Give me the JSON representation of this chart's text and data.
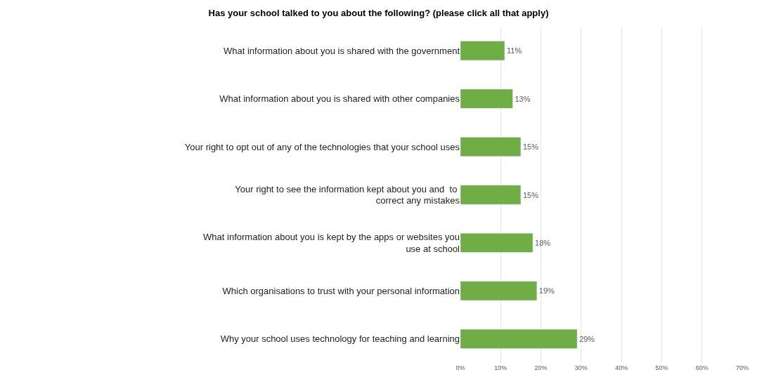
{
  "chart_data": {
    "type": "bar",
    "orientation": "horizontal",
    "title": "Has your school talked to you about the following? (please click all that apply)",
    "categories": [
      "What information about you is shared with the government",
      "What information about you is shared with other companies",
      "Your right to opt out of any of the technologies that your school uses",
      "Your right to see the information kept about you and  to correct any mistakes",
      "What information about you is kept by the apps or websites you use at school",
      "Which organisations to trust with your personal information",
      "Why your school uses technology for teaching and learning"
    ],
    "values": [
      11,
      13,
      15,
      15,
      18,
      19,
      29
    ],
    "value_labels": [
      "11%",
      "13%",
      "15%",
      "15%",
      "18%",
      "19%",
      "29%"
    ],
    "color": "#70ad47",
    "xlim": [
      0,
      70
    ],
    "xticks": [
      {
        "value": 0,
        "label": "0%"
      },
      {
        "value": 10,
        "label": "10%"
      },
      {
        "value": 20,
        "label": "20%"
      },
      {
        "value": 30,
        "label": "30%"
      },
      {
        "value": 40,
        "label": "40%"
      },
      {
        "value": 50,
        "label": "50%"
      },
      {
        "value": 60,
        "label": "60%"
      },
      {
        "value": 70,
        "label": "70%"
      }
    ],
    "grid": "x",
    "legend": false
  }
}
